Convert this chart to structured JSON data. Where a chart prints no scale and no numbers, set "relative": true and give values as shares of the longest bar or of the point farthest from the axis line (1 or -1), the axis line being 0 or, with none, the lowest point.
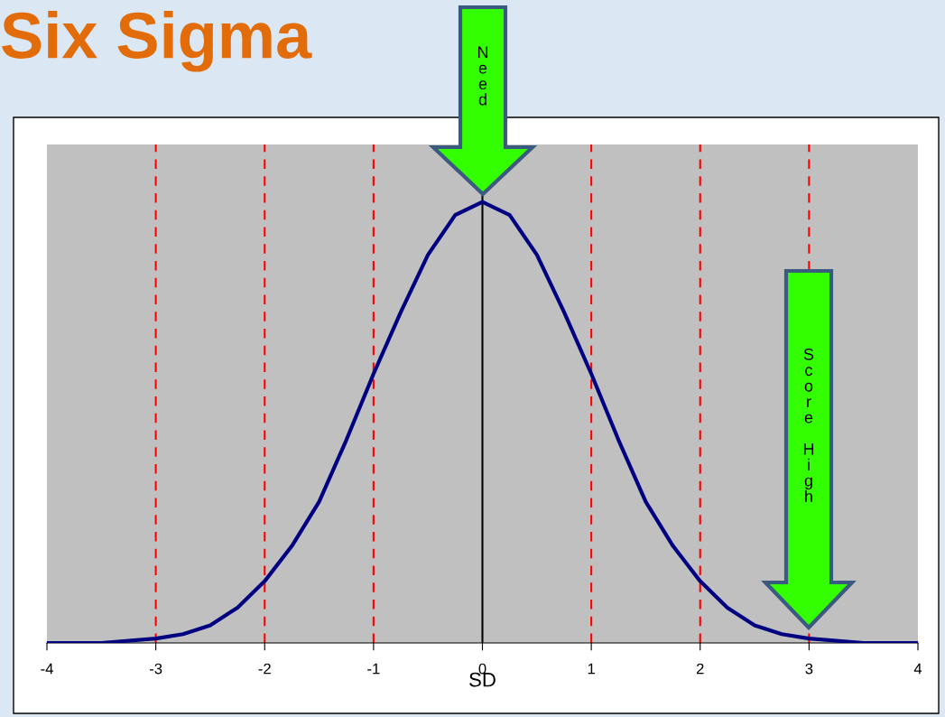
{
  "chart_data": {
    "type": "line",
    "title": "Six Sigma",
    "xlabel": "SD",
    "relative": true,
    "x": [
      -4,
      -3.5,
      -3,
      -2.75,
      -2.5,
      -2.25,
      -2,
      -1.75,
      -1.5,
      -1.25,
      -1,
      -0.75,
      -0.5,
      -0.25,
      0,
      0.25,
      0.5,
      0.75,
      1,
      1.25,
      1.5,
      1.75,
      2,
      2.25,
      2.5,
      2.75,
      3,
      3.5,
      4
    ],
    "series": [
      {
        "color": "#000080",
        "values": [
          0,
          0,
          0.01,
          0.02,
          0.04,
          0.08,
          0.14,
          0.22,
          0.32,
          0.46,
          0.61,
          0.75,
          0.88,
          0.97,
          1,
          0.97,
          0.88,
          0.75,
          0.61,
          0.46,
          0.32,
          0.22,
          0.14,
          0.08,
          0.04,
          0.02,
          0.01,
          0,
          0
        ]
      }
    ],
    "xlim": [
      -4,
      4
    ],
    "xticks": [
      -4,
      -3,
      -2,
      -1,
      0,
      1,
      2,
      3,
      4
    ],
    "ref_lines": [
      {
        "axis": "x",
        "value": -3,
        "color": "#ff0000",
        "line_style": "dashed"
      },
      {
        "axis": "x",
        "value": -2,
        "color": "#ff0000",
        "line_style": "dashed"
      },
      {
        "axis": "x",
        "value": -1,
        "color": "#ff0000",
        "line_style": "dashed"
      },
      {
        "axis": "x",
        "value": 0,
        "color": "#000000",
        "line_style": "solid"
      },
      {
        "axis": "x",
        "value": 1,
        "color": "#ff0000",
        "line_style": "dashed"
      },
      {
        "axis": "x",
        "value": 2,
        "color": "#ff0000",
        "line_style": "dashed"
      },
      {
        "axis": "x",
        "value": 3,
        "color": "#ff0000",
        "line_style": "dashed"
      }
    ],
    "annotations": [
      "Need",
      "Score High"
    ]
  }
}
